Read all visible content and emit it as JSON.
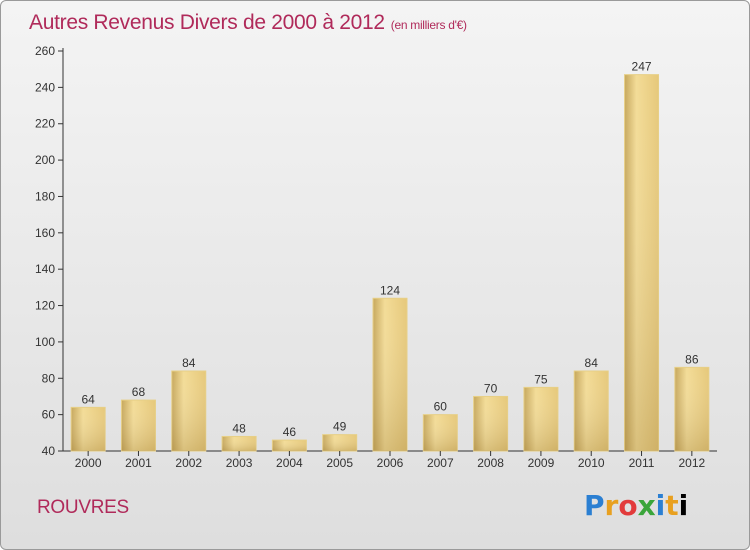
{
  "header": {
    "title": "Autres Revenus Divers de 2000 à 2012",
    "unit": "(en milliers d'€)"
  },
  "footer": {
    "city": "ROUVRES",
    "logo_text": "Proxiti"
  },
  "colors": {
    "title": "#b02a5a",
    "bar_light": "#f3dc97",
    "bar_dark": "#c6a75c",
    "axis": "#333333"
  },
  "chart_data": {
    "type": "bar",
    "title": "Autres Revenus Divers de 2000 à 2012",
    "subtitle": "(en milliers d'€)",
    "xlabel": "",
    "ylabel": "",
    "categories": [
      "2000",
      "2001",
      "2002",
      "2003",
      "2004",
      "2005",
      "2006",
      "2007",
      "2008",
      "2009",
      "2010",
      "2011",
      "2012"
    ],
    "values": [
      64,
      68,
      84,
      48,
      46,
      49,
      124,
      60,
      70,
      75,
      84,
      247,
      86
    ],
    "ylim": [
      40,
      260
    ],
    "yticks": [
      40,
      60,
      80,
      100,
      120,
      140,
      160,
      180,
      200,
      220,
      240,
      260
    ],
    "grid": false,
    "legend": "none"
  }
}
